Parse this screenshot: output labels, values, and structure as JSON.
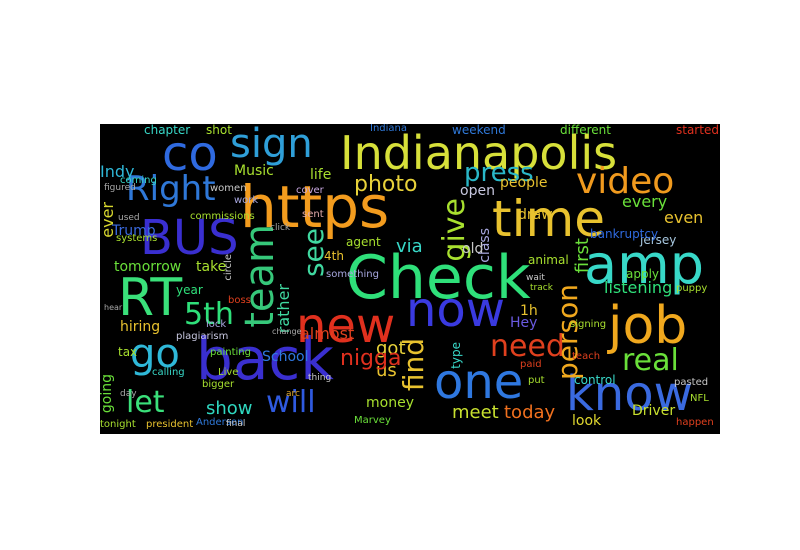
{
  "words": [
    {
      "text": "Indianapolis",
      "color": "#d7e03a"
    },
    {
      "text": "https",
      "color": "#f39c1e"
    },
    {
      "text": "Check",
      "color": "#2fe07a"
    },
    {
      "text": "back",
      "color": "#3a2fd0"
    },
    {
      "text": "co",
      "color": "#2f6ae0"
    },
    {
      "text": "sign",
      "color": "#2f9fd8"
    },
    {
      "text": "time",
      "color": "#e8c22f"
    },
    {
      "text": "amp",
      "color": "#38d8c8"
    },
    {
      "text": "job",
      "color": "#f0a81e"
    },
    {
      "text": "new",
      "color": "#e0301e"
    },
    {
      "text": "now",
      "color": "#3a3ae0"
    },
    {
      "text": "one",
      "color": "#2f78e0"
    },
    {
      "text": "know",
      "color": "#3a6ae0"
    },
    {
      "text": "BUS",
      "color": "#3a2fd0"
    },
    {
      "text": "RT",
      "color": "#3ae07a"
    },
    {
      "text": "team",
      "color": "#36c87a"
    },
    {
      "text": "video",
      "color": "#f09a1e"
    },
    {
      "text": "Right",
      "color": "#2f78d8"
    },
    {
      "text": "go",
      "color": "#2fb8d8"
    },
    {
      "text": "give",
      "color": "#a8e02f"
    },
    {
      "text": "press",
      "color": "#2ab7c8"
    },
    {
      "text": "need",
      "color": "#e0401e"
    },
    {
      "text": "person",
      "color": "#f0a81e"
    },
    {
      "text": "find",
      "color": "#e8c22f"
    },
    {
      "text": "5th",
      "color": "#2fe07a"
    },
    {
      "text": "let",
      "color": "#3ae07a"
    },
    {
      "text": "will",
      "color": "#2f5ae0"
    },
    {
      "text": "real",
      "color": "#6ae03a"
    },
    {
      "text": "see",
      "color": "#40d8a0"
    },
    {
      "text": "photo",
      "color": "#e8d23a"
    },
    {
      "text": "show",
      "color": "#2fd8c0"
    },
    {
      "text": "meet",
      "color": "#c8e02f"
    },
    {
      "text": "today",
      "color": "#f0701e"
    },
    {
      "text": "first",
      "color": "#6ae03a"
    },
    {
      "text": "ever",
      "color": "#d8d82f"
    },
    {
      "text": "even",
      "color": "#e8c22f"
    },
    {
      "text": "every",
      "color": "#6ae03a"
    },
    {
      "text": "Indy",
      "color": "#2fb8d8"
    },
    {
      "text": "us",
      "color": "#e8c22f"
    },
    {
      "text": "got",
      "color": "#e8d23a"
    },
    {
      "text": "nigga",
      "color": "#e0301e"
    },
    {
      "text": "via",
      "color": "#38d8c8"
    },
    {
      "text": "tomorrow",
      "color": "#6ae03a"
    },
    {
      "text": "take",
      "color": "#a8e02f"
    },
    {
      "text": "life",
      "color": "#a8e02f"
    },
    {
      "text": "Music",
      "color": "#a8e02f"
    },
    {
      "text": "Trump",
      "color": "#3a6ae0"
    },
    {
      "text": "hiring",
      "color": "#e8c22f"
    },
    {
      "text": "rather",
      "color": "#40d8a0"
    },
    {
      "text": "almost",
      "color": "#e0401e"
    },
    {
      "text": "School",
      "color": "#2f78e0"
    },
    {
      "text": "money",
      "color": "#a8e02f"
    },
    {
      "text": "Driver",
      "color": "#c8e02f"
    },
    {
      "text": "look",
      "color": "#e0d82f"
    },
    {
      "text": "listening",
      "color": "#2fe07a"
    },
    {
      "text": "jersey",
      "color": "#a8c8e0"
    },
    {
      "text": "people",
      "color": "#e8c22f"
    },
    {
      "text": "open",
      "color": "#c8c8e0"
    },
    {
      "text": "draw",
      "color": "#e8c22f"
    },
    {
      "text": "Hey",
      "color": "#6a5ae0"
    },
    {
      "text": "1h",
      "color": "#e8c22f"
    },
    {
      "text": "class",
      "color": "#a8a8e0"
    },
    {
      "text": "old",
      "color": "#c8c8c8"
    },
    {
      "text": "going",
      "color": "#6ae03a"
    },
    {
      "text": "chapter",
      "color": "#38d8c8"
    },
    {
      "text": "shot",
      "color": "#a8e02f"
    },
    {
      "text": "Indiana",
      "color": "#2f78d8"
    },
    {
      "text": "weekend",
      "color": "#2f78d8"
    },
    {
      "text": "different",
      "color": "#6ae03a"
    },
    {
      "text": "started",
      "color": "#e0301e"
    },
    {
      "text": "bankruptcy",
      "color": "#2f6ae0"
    },
    {
      "text": "apply",
      "color": "#6ae03a"
    },
    {
      "text": "year",
      "color": "#2fe07a"
    },
    {
      "text": "4th",
      "color": "#e8c22f"
    },
    {
      "text": "agent",
      "color": "#a8e02f"
    },
    {
      "text": "animal",
      "color": "#a8e02f"
    },
    {
      "text": "type",
      "color": "#38d8c8"
    },
    {
      "text": "control",
      "color": "#38d8c8"
    },
    {
      "text": "tax",
      "color": "#a8e02f"
    },
    {
      "text": "president",
      "color": "#e8c22f"
    },
    {
      "text": "Anderson",
      "color": "#2f78d8"
    },
    {
      "text": "Marvey",
      "color": "#6ae03a"
    },
    {
      "text": "NFL",
      "color": "#a8e02f"
    },
    {
      "text": "painting",
      "color": "#6ae03a"
    },
    {
      "text": "something",
      "color": "#a8a8e0"
    },
    {
      "text": "plagiarism",
      "color": "#c8c8e0"
    },
    {
      "text": "commissions",
      "color": "#a8e02f"
    },
    {
      "text": "coming",
      "color": "#38d8c8"
    },
    {
      "text": "used",
      "color": "#a8a8a8"
    },
    {
      "text": "systems",
      "color": "#a8e02f"
    },
    {
      "text": "tonight",
      "color": "#a8e02f"
    },
    {
      "text": "boss",
      "color": "#e0401e"
    },
    {
      "text": "lock",
      "color": "#a8a8e0"
    },
    {
      "text": "bigger",
      "color": "#a8e02f"
    },
    {
      "text": "Live",
      "color": "#a8e02f"
    },
    {
      "text": "calling",
      "color": "#38d8c8"
    },
    {
      "text": "circle",
      "color": "#c8c8c8"
    },
    {
      "text": "women",
      "color": "#c8c8c8"
    },
    {
      "text": "work",
      "color": "#a8a8e0"
    },
    {
      "text": "cover",
      "color": "#c8a8e0"
    },
    {
      "text": "sent",
      "color": "#e0a8a8"
    },
    {
      "text": "paid",
      "color": "#e0401e"
    },
    {
      "text": "wait",
      "color": "#c8c8c8"
    },
    {
      "text": "track",
      "color": "#a8e02f"
    },
    {
      "text": "put",
      "color": "#a8e02f"
    },
    {
      "text": "teach",
      "color": "#e0401e"
    },
    {
      "text": "puppy",
      "color": "#a8e02f"
    },
    {
      "text": "happen",
      "color": "#e0401e"
    },
    {
      "text": "pasted",
      "color": "#c8c8c8"
    },
    {
      "text": "signing",
      "color": "#a8e02f"
    },
    {
      "text": "thing",
      "color": "#c8c8c8"
    },
    {
      "text": "arc",
      "color": "#e0a82f"
    },
    {
      "text": "final",
      "color": "#c8c8c8"
    },
    {
      "text": "day",
      "color": "#a8a8a8"
    },
    {
      "text": "figured",
      "color": "#a8a8a8"
    },
    {
      "text": "change",
      "color": "#a8a8a8"
    },
    {
      "text": "click",
      "color": "#a8a8a8"
    },
    {
      "text": "hear",
      "color": "#a8a8a8"
    }
  ]
}
